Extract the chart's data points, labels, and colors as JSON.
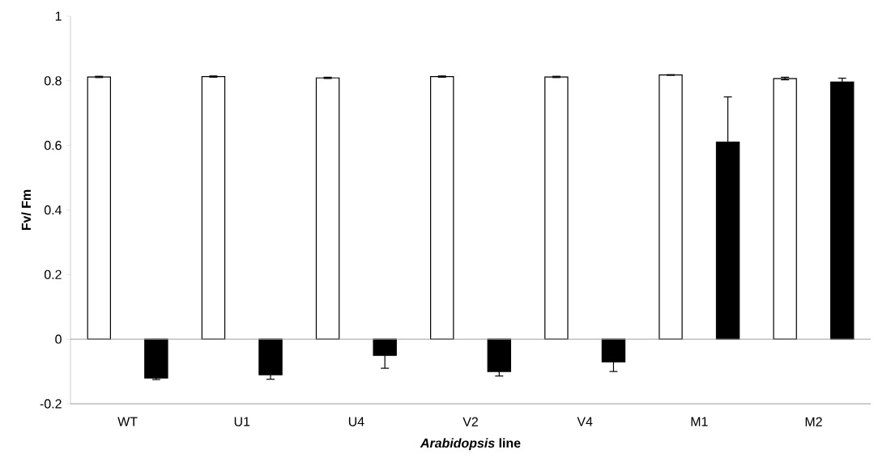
{
  "chart_data": {
    "type": "bar",
    "xlabel": "*Arabidopsis* line",
    "ylabel": "Fv/ Fm",
    "categories": [
      "WT",
      "U1",
      "U4",
      "V2",
      "V4",
      "M1",
      "M2"
    ],
    "series": [
      {
        "color": "#ffffff",
        "values": [
          0.812,
          0.813,
          0.809,
          0.813,
          0.812,
          0.818,
          0.807
        ],
        "errors": [
          0.002,
          0.002,
          0.002,
          0.002,
          0.002,
          0.001,
          0.004
        ]
      },
      {
        "color": "#000000",
        "values": [
          -0.12,
          -0.11,
          -0.05,
          -0.1,
          -0.07,
          0.61,
          0.796
        ],
        "errors": [
          0.005,
          0.014,
          0.04,
          0.014,
          0.03,
          0.14,
          0.012
        ]
      }
    ],
    "ylim": [
      -0.2,
      1
    ],
    "yticks": [
      -0.2,
      0,
      0.2,
      0.4,
      0.6,
      0.8,
      1
    ],
    "ref_lines": [
      {
        "axis": "y",
        "value": 0,
        "color": "#a0a0a0"
      }
    ]
  }
}
